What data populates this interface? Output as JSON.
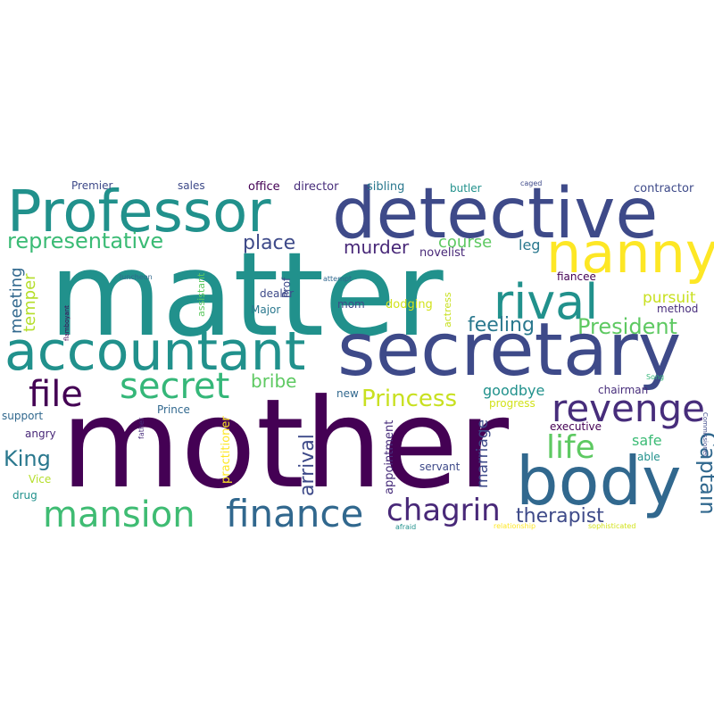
{
  "words": [
    {
      "text": "mother",
      "color": "#440154"
    },
    {
      "text": "matter",
      "color": "#21918c"
    },
    {
      "text": "detective",
      "color": "#3e4a89"
    },
    {
      "text": "secretary",
      "color": "#3e4a89"
    },
    {
      "text": "Professor",
      "color": "#21918c"
    },
    {
      "text": "accountant",
      "color": "#21918c"
    },
    {
      "text": "body",
      "color": "#31688e"
    },
    {
      "text": "nanny",
      "color": "#fde725"
    },
    {
      "text": "rival",
      "color": "#21918c"
    },
    {
      "text": "finance",
      "color": "#31688e"
    },
    {
      "text": "mansion",
      "color": "#3fbc73"
    },
    {
      "text": "revenge",
      "color": "#472d7b"
    },
    {
      "text": "secret",
      "color": "#35b779"
    },
    {
      "text": "chagrin",
      "color": "#482878"
    },
    {
      "text": "file",
      "color": "#440154"
    },
    {
      "text": "life",
      "color": "#5ec962"
    },
    {
      "text": "Princess",
      "color": "#c8e020"
    },
    {
      "text": "representative",
      "color": "#3bbb75"
    },
    {
      "text": "President",
      "color": "#5ec962"
    },
    {
      "text": "Captain",
      "color": "#31688e"
    },
    {
      "text": "therapist",
      "color": "#3e4a89"
    },
    {
      "text": "arrival",
      "color": "#3e4a89"
    },
    {
      "text": "feeling",
      "color": "#2a788e"
    },
    {
      "text": "place",
      "color": "#3e4a89"
    },
    {
      "text": "murder",
      "color": "#482878"
    },
    {
      "text": "course",
      "color": "#5ec962"
    },
    {
      "text": "King",
      "color": "#2a788e"
    },
    {
      "text": "bribe",
      "color": "#5ec962"
    },
    {
      "text": "meeting",
      "color": "#31688e"
    },
    {
      "text": "temper",
      "color": "#b5de2b"
    },
    {
      "text": "marriage",
      "color": "#3e4a89"
    },
    {
      "text": "pursuit",
      "color": "#c8e020"
    },
    {
      "text": "goodbye",
      "color": "#21918c"
    },
    {
      "text": "safe",
      "color": "#3bbb75"
    },
    {
      "text": "leg",
      "color": "#2a788e"
    },
    {
      "text": "practitioner",
      "color": "#fde725"
    },
    {
      "text": "appointment",
      "color": "#472d7b"
    },
    {
      "text": "novelist",
      "color": "#482878"
    },
    {
      "text": "contractor",
      "color": "#3e4a89"
    },
    {
      "text": "director",
      "color": "#472d7b"
    },
    {
      "text": "office",
      "color": "#440154"
    },
    {
      "text": "sibling",
      "color": "#2a788e"
    },
    {
      "text": "butler",
      "color": "#21918c"
    },
    {
      "text": "sales",
      "color": "#3e4a89"
    },
    {
      "text": "Premier",
      "color": "#3e4a89"
    },
    {
      "text": "dodging",
      "color": "#d2e21b"
    },
    {
      "text": "actress",
      "color": "#c8e020"
    },
    {
      "text": "dealer",
      "color": "#3e4a89"
    },
    {
      "text": "Major",
      "color": "#2a788e"
    },
    {
      "text": "mom",
      "color": "#3e4a89"
    },
    {
      "text": "Prof",
      "color": "#3e4a89"
    },
    {
      "text": "assistant",
      "color": "#5ec962"
    },
    {
      "text": "fiancee",
      "color": "#440154"
    },
    {
      "text": "method",
      "color": "#472d7b"
    },
    {
      "text": "chairman",
      "color": "#472d7b"
    },
    {
      "text": "executive",
      "color": "#440154"
    },
    {
      "text": "servant",
      "color": "#3e4a89"
    },
    {
      "text": "progress",
      "color": "#d2e21b"
    },
    {
      "text": "new",
      "color": "#31688e"
    },
    {
      "text": "Prince",
      "color": "#31688e"
    },
    {
      "text": "support",
      "color": "#31688e"
    },
    {
      "text": "angry",
      "color": "#482878"
    },
    {
      "text": "Vice",
      "color": "#b5de2b"
    },
    {
      "text": "drug",
      "color": "#21918c"
    },
    {
      "text": "able",
      "color": "#21918c"
    },
    {
      "text": "Song",
      "color": "#35b779"
    },
    {
      "text": "Commissioner",
      "color": "#3e4a89"
    },
    {
      "text": "father",
      "color": "#472d7b"
    },
    {
      "text": "flamboyant",
      "color": "#440154"
    },
    {
      "text": "luncheon",
      "color": "#31688e"
    },
    {
      "text": "attempt",
      "color": "#31688e"
    },
    {
      "text": "caged",
      "color": "#3e4a89"
    },
    {
      "text": "afraid",
      "color": "#21918c"
    },
    {
      "text": "relationship",
      "color": "#fde725"
    },
    {
      "text": "sophisticated",
      "color": "#d2e21b"
    }
  ]
}
